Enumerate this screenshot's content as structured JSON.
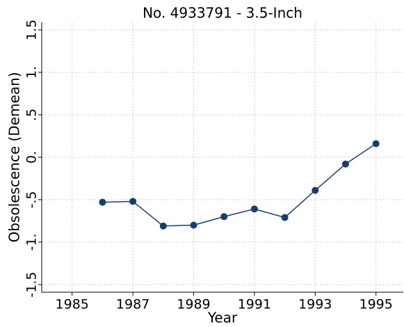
{
  "chart_data": {
    "type": "line",
    "title": "No. 4933791 - 3.5-Inch",
    "x_label": "Year",
    "y_label": "Obsolescence (Demean)",
    "x": [
      1986,
      1987,
      1988,
      1989,
      1990,
      1991,
      1992,
      1993,
      1994,
      1995
    ],
    "series": [
      {
        "color": "#173d6e",
        "values": [
          -0.53,
          -0.52,
          -0.81,
          -0.8,
          -0.7,
          -0.61,
          -0.71,
          -0.39,
          -0.08,
          0.16
        ]
      }
    ],
    "xlim": [
      1984,
      1995.9
    ],
    "ylim": [
      -1.59,
      1.59
    ],
    "xticks": [
      1985,
      1987,
      1989,
      1991,
      1993,
      1995
    ],
    "yticks": [
      {
        "value": -1.5,
        "label": "-1.5"
      },
      {
        "value": -1,
        "label": "-1."
      },
      {
        "value": -0.5,
        "label": "-.5"
      },
      {
        "value": 0,
        "label": "0."
      },
      {
        "value": 0.5,
        "label": ".5"
      },
      {
        "value": 1,
        "label": "1."
      },
      1.5
    ],
    "grid": true
  }
}
